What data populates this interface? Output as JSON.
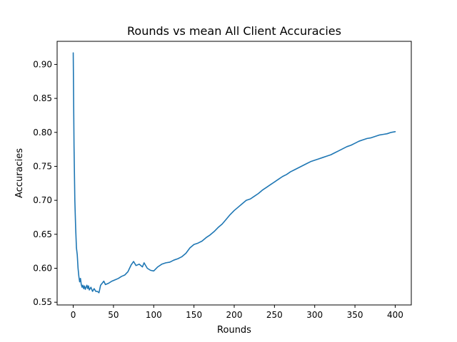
{
  "chart_data": {
    "type": "line",
    "title": "Rounds vs mean All Client Accuracies",
    "xlabel": "Rounds",
    "ylabel": "Accuracies",
    "xlim": [
      -20,
      420
    ],
    "ylim": [
      0.546,
      0.934
    ],
    "xticks": [
      0,
      50,
      100,
      150,
      200,
      250,
      300,
      350,
      400
    ],
    "xtick_labels": [
      "0",
      "50",
      "100",
      "150",
      "200",
      "250",
      "300",
      "350",
      "400"
    ],
    "yticks": [
      0.55,
      0.6,
      0.65,
      0.7,
      0.75,
      0.8,
      0.85,
      0.9
    ],
    "ytick_labels": [
      "0.55",
      "0.60",
      "0.65",
      "0.70",
      "0.75",
      "0.80",
      "0.85",
      "0.90"
    ],
    "grid": false,
    "legend": "none",
    "series": [
      {
        "color": "#1f77b4",
        "x": [
          0,
          1,
          2,
          3,
          4,
          5,
          6,
          7,
          8,
          9,
          10,
          11,
          12,
          13,
          14,
          15,
          16,
          17,
          18,
          19,
          20,
          22,
          24,
          26,
          28,
          30,
          32,
          34,
          36,
          38,
          40,
          44,
          48,
          52,
          56,
          60,
          64,
          68,
          72,
          75,
          78,
          82,
          86,
          88,
          92,
          96,
          100,
          105,
          110,
          115,
          120,
          125,
          130,
          135,
          140,
          145,
          150,
          155,
          160,
          165,
          170,
          175,
          180,
          185,
          190,
          195,
          200,
          205,
          210,
          215,
          220,
          225,
          230,
          235,
          240,
          245,
          250,
          255,
          260,
          265,
          270,
          275,
          280,
          285,
          290,
          295,
          300,
          305,
          310,
          315,
          320,
          325,
          330,
          335,
          340,
          345,
          350,
          355,
          360,
          365,
          370,
          375,
          380,
          385,
          390,
          395,
          400
        ],
        "y": [
          0.917,
          0.78,
          0.7,
          0.66,
          0.63,
          0.62,
          0.6,
          0.588,
          0.58,
          0.585,
          0.576,
          0.572,
          0.575,
          0.57,
          0.574,
          0.569,
          0.572,
          0.575,
          0.57,
          0.574,
          0.568,
          0.572,
          0.566,
          0.57,
          0.566,
          0.566,
          0.564,
          0.575,
          0.578,
          0.581,
          0.576,
          0.578,
          0.581,
          0.583,
          0.585,
          0.588,
          0.59,
          0.595,
          0.605,
          0.61,
          0.604,
          0.606,
          0.602,
          0.608,
          0.6,
          0.597,
          0.596,
          0.602,
          0.606,
          0.608,
          0.609,
          0.612,
          0.614,
          0.617,
          0.622,
          0.63,
          0.635,
          0.637,
          0.64,
          0.645,
          0.649,
          0.654,
          0.66,
          0.665,
          0.672,
          0.679,
          0.685,
          0.69,
          0.695,
          0.7,
          0.702,
          0.706,
          0.71,
          0.715,
          0.719,
          0.723,
          0.727,
          0.731,
          0.735,
          0.738,
          0.742,
          0.745,
          0.748,
          0.751,
          0.754,
          0.757,
          0.759,
          0.761,
          0.763,
          0.765,
          0.767,
          0.77,
          0.773,
          0.776,
          0.779,
          0.781,
          0.784,
          0.787,
          0.789,
          0.791,
          0.792,
          0.794,
          0.796,
          0.797,
          0.798,
          0.8,
          0.801
        ]
      }
    ]
  }
}
